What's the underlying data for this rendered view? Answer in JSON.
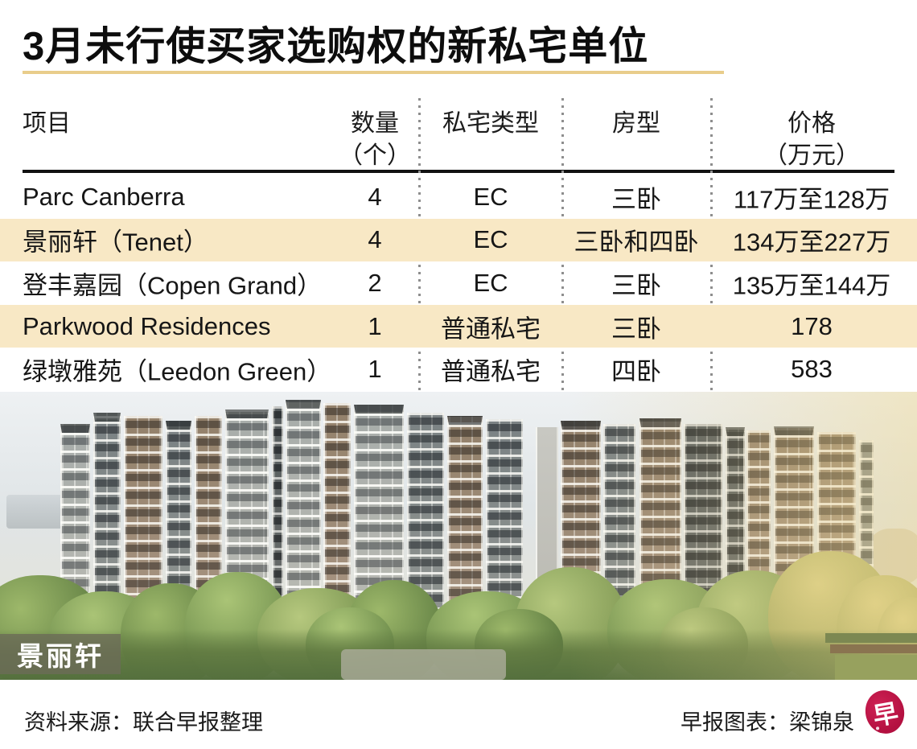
{
  "title": "3月未行使买家选购权的新私宅单位",
  "colors": {
    "highlight_row": "#f8e8c5",
    "title_underline": "#e9cd8b",
    "logo_red": "#c01747"
  },
  "table_header": [
    {
      "line1": "项目",
      "line2": ""
    },
    {
      "line1": "数量",
      "line2": "（个）"
    },
    {
      "line1": "私宅类型",
      "line2": ""
    },
    {
      "line1": "房型",
      "line2": ""
    },
    {
      "line1": "价格",
      "line2": "（万元）"
    }
  ],
  "chart_data": {
    "type": "table",
    "title": "3月未行使买家选购权的新私宅单位",
    "columns": [
      "项目",
      "数量（个）",
      "私宅类型",
      "房型",
      "价格（万元）"
    ],
    "rows": [
      [
        "Parc Canberra",
        "4",
        "EC",
        "三卧",
        "117万至128万"
      ],
      [
        "景丽轩（Tenet）",
        "4",
        "EC",
        "三卧和四卧",
        "134万至227万"
      ],
      [
        "登丰嘉园（Copen Grand）",
        "2",
        "EC",
        "三卧",
        "135万至144万"
      ],
      [
        "Parkwood Residences",
        "1",
        "普通私宅",
        "三卧",
        "178"
      ],
      [
        "绿墩雅苑（Leedon Green）",
        "1",
        "普通私宅",
        "四卧",
        "583"
      ]
    ],
    "highlighted_rows": [
      1,
      3
    ]
  },
  "photo": {
    "caption": "景丽轩"
  },
  "footer": {
    "source": "资料来源：联合早报整理",
    "credit": "早报图表：梁锦泉",
    "logo_glyph": "早"
  }
}
